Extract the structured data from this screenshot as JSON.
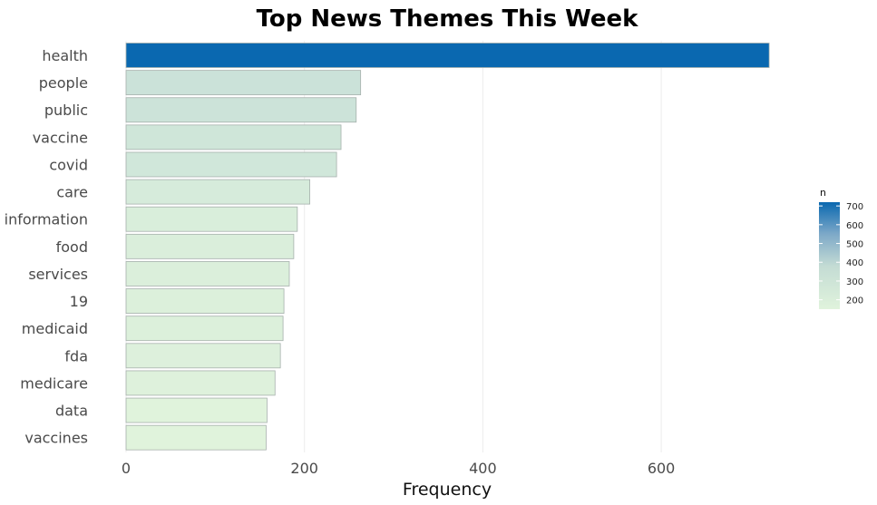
{
  "chart_data": {
    "type": "bar",
    "orientation": "horizontal",
    "title": "Top News Themes This Week",
    "xlabel": "Frequency",
    "ylabel": "",
    "categories": [
      "health",
      "people",
      "public",
      "vaccine",
      "covid",
      "care",
      "information",
      "food",
      "services",
      "19",
      "medicaid",
      "fda",
      "medicare",
      "data",
      "vaccines"
    ],
    "values": [
      721,
      263,
      258,
      241,
      236,
      206,
      192,
      188,
      183,
      177,
      176,
      173,
      167,
      158,
      157
    ],
    "xlim": [
      0,
      740
    ],
    "xticks": [
      "0",
      "200",
      "400",
      "600"
    ],
    "grid": true,
    "legend": {
      "title": "n",
      "placement": "right",
      "ticks": [
        "700",
        "600",
        "500",
        "400",
        "300",
        "200"
      ],
      "range": [
        157,
        721
      ]
    },
    "colors": {
      "low": "#e0f3dc",
      "mid": "#b9d4d6",
      "high": "#0a68b0",
      "bar_outline": "#a6b0ac",
      "grid": "#ececec"
    }
  }
}
